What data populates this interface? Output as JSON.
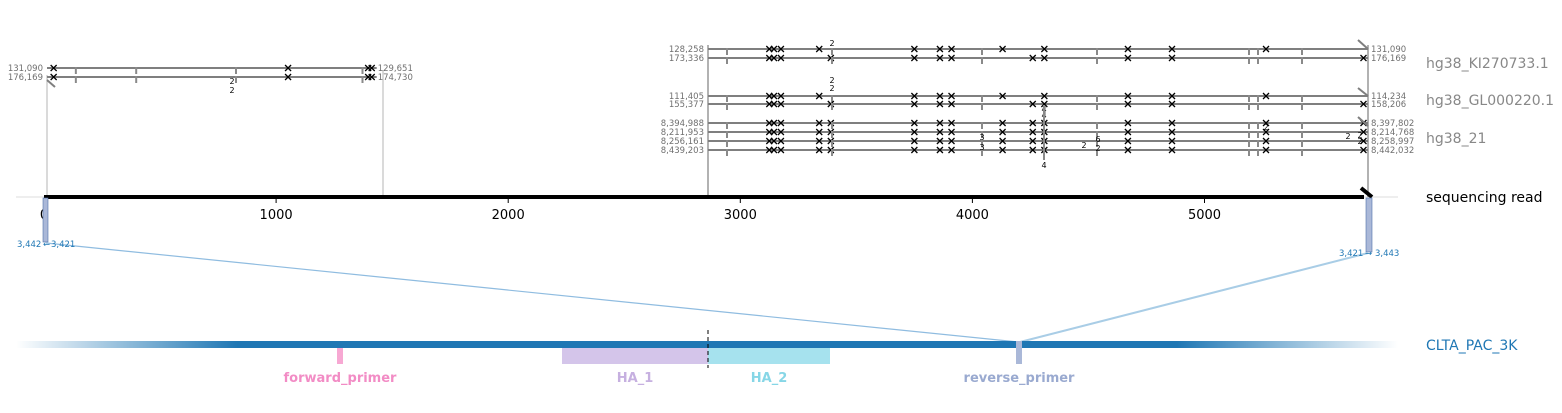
{
  "colors": {
    "reference": "#7f7f7f",
    "read": "#000000",
    "amplicon": "#1f77b4",
    "forward_primer": "#f7a8d3",
    "forward_primer_text": "#f28cc5",
    "ha1": "#d4c5ea",
    "ha1_text": "#c6b0e0",
    "ha2": "#a6e2ee",
    "ha2_text": "#86d6e6",
    "reverse_primer": "#aab8d8",
    "reverse_primer_text": "#9aaad0",
    "connector": "#8fbce0"
  },
  "read": {
    "label": "sequencing read",
    "length": 5680,
    "ticks": [
      0,
      1000,
      2000,
      3000,
      4000,
      5000
    ]
  },
  "references": [
    {
      "name": "hg38_KI270733.1"
    },
    {
      "name": "hg38_GL000220.1"
    },
    {
      "name": "hg38_21"
    }
  ],
  "left_block": {
    "read_start": 0,
    "read_end": 1455,
    "mismatch_positions": [
      20,
      1030,
      1375
    ],
    "indel_positions": [
      120,
      380,
      810,
      1355
    ],
    "indel_counts": [
      "2",
      "2"
    ],
    "alignments": [
      {
        "left": "131,090",
        "right": "129,651"
      },
      {
        "left": "176,169",
        "right": "174,730"
      }
    ]
  },
  "right_block": {
    "read_start": 2855,
    "read_end": 5695,
    "mismatch_positions": [
      3125,
      3145,
      3175,
      3340,
      3390,
      3750,
      3860,
      3910,
      4130,
      4260,
      4310,
      4670,
      4860,
      5265,
      5685
    ],
    "count_labels": [
      "2",
      "2",
      "2",
      "3",
      "3",
      "4",
      "4",
      "2",
      "2",
      "6",
      "2",
      "2",
      "2",
      "2",
      "4"
    ],
    "ki_alignments": [
      {
        "left": "128,258",
        "right": "131,090"
      },
      {
        "left": "173,336",
        "right": "176,169"
      }
    ],
    "gl_alignments": [
      {
        "left": "111,405",
        "right": "114,234"
      },
      {
        "left": "155,377",
        "right": "158,206"
      }
    ],
    "chr21_alignments": [
      {
        "left": "8,394,988",
        "right": "8,397,802"
      },
      {
        "left": "8,211,953",
        "right": "8,214,768"
      },
      {
        "left": "8,256,161",
        "right": "8,258,997"
      },
      {
        "left": "8,439,203",
        "right": "8,442,032"
      }
    ]
  },
  "read_to_amplicon": {
    "left": {
      "from": "3,442",
      "to": "3,421"
    },
    "right": {
      "from": "3,421",
      "to": "3,443"
    }
  },
  "amplicon": {
    "name": "CLTA_PAC_3K",
    "features": [
      {
        "name": "forward_primer"
      },
      {
        "name": "HA_1"
      },
      {
        "name": "HA_2"
      },
      {
        "name": "reverse_primer"
      }
    ]
  }
}
